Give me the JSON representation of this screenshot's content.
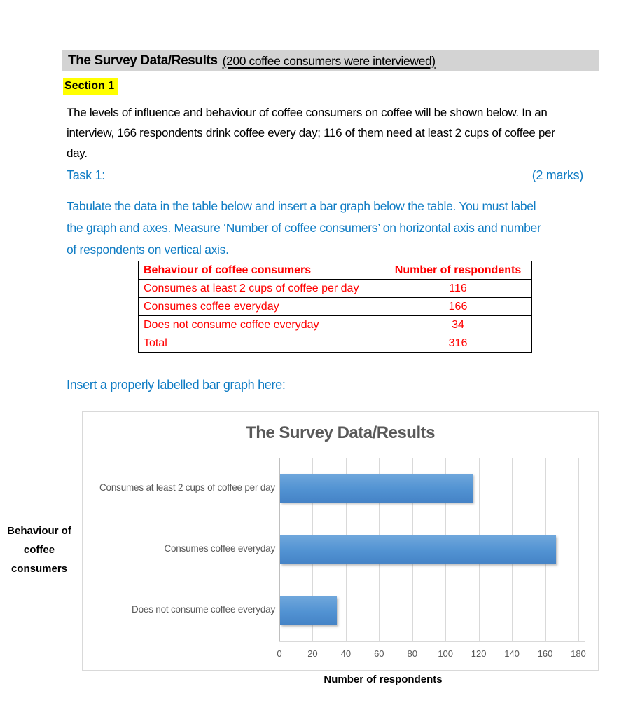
{
  "header": {
    "title": "The Survey Data/Results",
    "subtitle": "(200 coffee consumers were interviewed)"
  },
  "section": {
    "label": "Section 1"
  },
  "intro": "The levels of influence and behaviour of coffee consumers on coffee will be shown below. In an\ninterview, 166 respondents drink coffee every day; 116 of them need at least 2 cups of coffee per\nday.",
  "task": {
    "label": "Task 1:",
    "marks": "(2 marks)",
    "instructions": "Tabulate the data in the table below and insert a bar graph below the table. You must label\nthe graph and axes. Measure ‘Number of coffee consumers’ on horizontal axis and number\nof respondents on vertical axis."
  },
  "table": {
    "headers": [
      "Behaviour of coffee consumers",
      "Number of respondents"
    ],
    "rows": [
      [
        "Consumes at least 2 cups of coffee per day",
        "116"
      ],
      [
        "Consumes coffee everyday",
        "166"
      ],
      [
        "Does not consume coffee everyday",
        "34"
      ],
      [
        "Total",
        "316"
      ]
    ]
  },
  "insert_prompt": "Insert a properly labelled bar graph here:",
  "chart_data": {
    "type": "bar",
    "orientation": "horizontal",
    "title": "The Survey Data/Results",
    "categories": [
      "Consumes at least 2 cups of coffee per day",
      "Consumes coffee everyday",
      "Does not consume coffee everyday"
    ],
    "values": [
      116,
      166,
      34
    ],
    "xlabel": "Number of respondents",
    "ylabel": "Behaviour of coffee consumers",
    "xlim": [
      0,
      180
    ],
    "x_ticks": [
      0,
      20,
      40,
      60,
      80,
      100,
      120,
      140,
      160,
      180
    ],
    "grid": true,
    "legend": false,
    "bar_color_top": "#6FA7DC",
    "bar_color_bottom": "#4583C6",
    "title_color": "#595959",
    "gridline_color": "#D9D9D9"
  },
  "colors": {
    "accent_blue": "#0F7CC4",
    "table_red": "#FF0000",
    "highlight_yellow": "#FFFF00",
    "header_bar_gray": "#D3D3D3"
  }
}
